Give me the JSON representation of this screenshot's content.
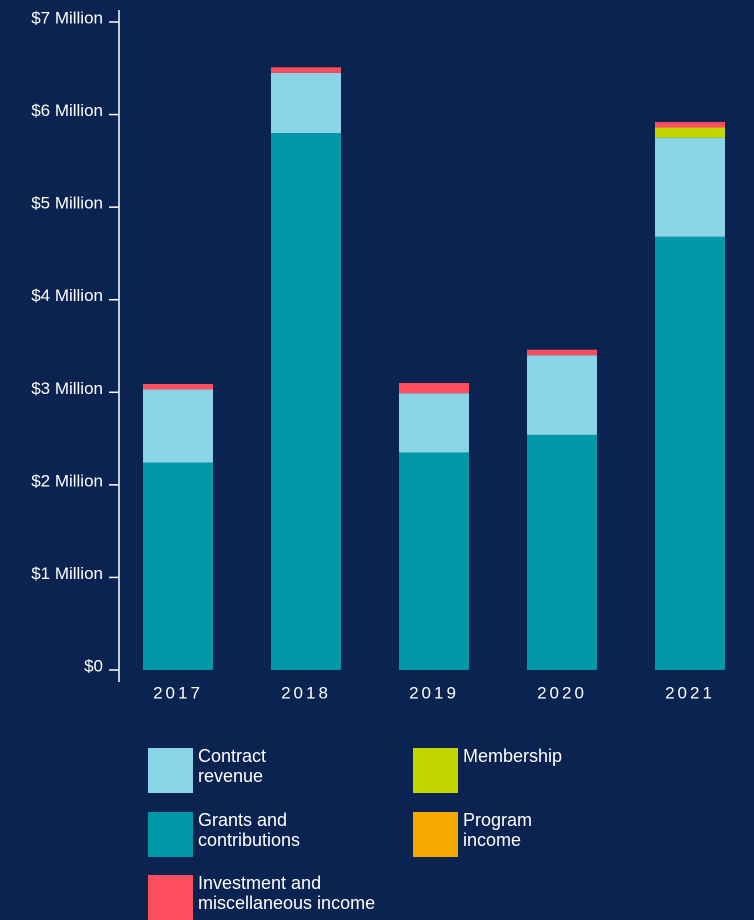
{
  "chart_data": {
    "type": "bar",
    "categories": [
      "2017",
      "2018",
      "2019",
      "2020",
      "2021"
    ],
    "series": [
      {
        "name": "Grants and contributions",
        "color": "#0097a9",
        "values": [
          2.24,
          5.8,
          2.35,
          2.54,
          4.68
        ]
      },
      {
        "name": "Contract revenue",
        "color": "#8ad4e8",
        "values": [
          0.79,
          0.65,
          0.64,
          0.86,
          1.07
        ]
      },
      {
        "name": "Program income",
        "color": "#f5a800",
        "values": [
          0,
          0,
          0,
          0,
          0
        ]
      },
      {
        "name": "Membership",
        "color": "#c4d600",
        "values": [
          0,
          0,
          0,
          0,
          0.11
        ]
      },
      {
        "name": "Investment and miscellaneous income",
        "color": "#ff4f5e",
        "values": [
          0.06,
          0.06,
          0.11,
          0.06,
          0.06
        ]
      }
    ],
    "ylim": [
      0,
      7
    ],
    "yticks": [
      {
        "value": 0,
        "label": "$0"
      },
      {
        "value": 1,
        "label": "$1 Million"
      },
      {
        "value": 2,
        "label": "$2 Million"
      },
      {
        "value": 3,
        "label": "$3 Million"
      },
      {
        "value": 4,
        "label": "$4 Million"
      },
      {
        "value": 5,
        "label": "$5 Million"
      },
      {
        "value": 6,
        "label": "$6 Million"
      },
      {
        "value": 7,
        "label": "$7 Million"
      }
    ],
    "stacked": true
  }
}
